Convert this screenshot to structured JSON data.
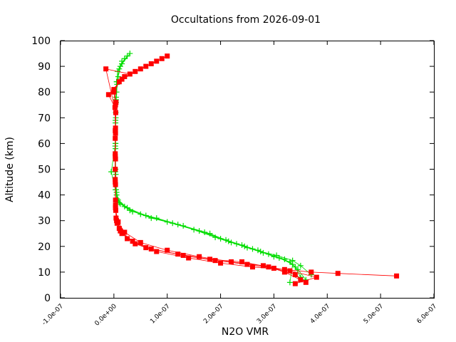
{
  "chart_data": {
    "type": "scatter",
    "title": "Occultations from 2026-09-01",
    "xlabel": "N2O VMR",
    "ylabel": "Altitude (km)",
    "xlim": [
      -1e-07,
      6e-07
    ],
    "ylim": [
      0,
      100
    ],
    "x_ticks": [
      -1e-07,
      0.0,
      1e-07,
      2e-07,
      3e-07,
      4e-07,
      5e-07,
      6e-07
    ],
    "x_tick_labels": [
      "-1.0e-07",
      "0.0e+00",
      "1.0e-07",
      "2.0e-07",
      "3.0e-07",
      "4.0e-07",
      "5.0e-07",
      "6.0e-07"
    ],
    "y_ticks": [
      0,
      10,
      20,
      30,
      40,
      50,
      60,
      70,
      80,
      90,
      100
    ],
    "y_tick_labels": [
      "0",
      "10",
      "20",
      "30",
      "40",
      "50",
      "60",
      "70",
      "80",
      "90",
      "100"
    ],
    "grid": false,
    "legend": "none",
    "series": [
      {
        "marker": "plus",
        "color": "#00dd00",
        "profiles": [
          {
            "x": [
              3.5e-07,
              3.4e-07,
              3.2e-07,
              2.9e-07,
              2.6e-07,
              2.3e-07,
              2e-07,
              1.6e-07,
              1.1e-07,
              6e-08,
              2.5e-08,
              8e-09,
              4e-09,
              3e-09,
              3e-09,
              3.5e-09,
              4e-09,
              5e-09,
              7e-09,
              1.5e-08,
              2.5e-08
            ],
            "y": [
              8,
              12,
              15,
              17,
              19,
              21,
              23,
              26,
              29,
              32,
              35,
              38,
              42,
              50,
              60,
              70,
              78,
              84,
              88,
              91,
              94
            ]
          },
          {
            "x": [
              3.6e-07,
              3.45e-07,
              3.3e-07,
              3e-07,
              2.7e-07,
              2.4e-07,
              2.1e-07,
              1.7e-07,
              1.2e-07,
              7e-08,
              3e-08,
              1e-08,
              5e-09,
              3.5e-09,
              3e-09,
              3e-09,
              4e-09,
              6e-09,
              1e-08,
              2e-08
            ],
            "y": [
              7,
              11,
              14,
              16,
              18.5,
              20.5,
              22.5,
              25.5,
              28.5,
              31,
              34,
              37,
              41,
              48,
              58,
              68,
              76,
              83,
              89,
              93
            ]
          },
          {
            "x": [
              3.3e-07,
              3.35e-07,
              3.1e-07,
              2.8e-07,
              2.5e-07,
              2.2e-07,
              1.9e-07,
              1.5e-07,
              1e-07,
              5e-08,
              2e-08,
              6e-09,
              3e-09,
              2.5e-09,
              2.5e-09,
              3e-09,
              4e-09,
              6e-09,
              1.2e-08,
              3e-08
            ],
            "y": [
              6,
              13,
              15.5,
              17.5,
              19.5,
              21.5,
              23.5,
              26.5,
              29.5,
              32.5,
              35.5,
              38.5,
              42,
              49,
              59,
              69,
              77,
              84,
              90,
              95
            ]
          },
          {
            "x": [
              3.7e-07,
              3.5e-07,
              3.35e-07,
              3.05e-07,
              2.75e-07,
              2.45e-07,
              2.15e-07,
              1.8e-07,
              1.3e-07,
              8e-08,
              3.5e-08,
              1.2e-08,
              5e-09,
              -5e-09,
              3e-09,
              3.5e-09,
              5e-09,
              8e-09,
              1.5e-08
            ],
            "y": [
              9,
              12.5,
              14.5,
              16.5,
              18,
              20,
              22,
              25,
              28,
              31,
              33.5,
              36.5,
              40,
              49,
              60,
              72,
              80,
              86,
              92
            ]
          }
        ]
      },
      {
        "marker": "square",
        "color": "#ff0000",
        "profiles": [
          {
            "x": [
              5.3e-07,
              4.2e-07,
              3.7e-07,
              3.2e-07,
              2.6e-07,
              2e-07,
              1.4e-07,
              8e-08,
              4e-08,
              1.5e-08,
              6e-09,
              3e-09,
              2.5e-09,
              2.5e-09,
              2.5e-09,
              3e-09,
              0.0,
              1e-08,
              4e-08,
              9e-08
            ],
            "y": [
              8.5,
              9.5,
              10,
              11,
              12,
              13.5,
              15.5,
              18,
              21,
              25,
              29,
              35,
              45,
              55,
              65,
              75,
              80,
              84,
              88,
              93
            ]
          },
          {
            "x": [
              3.6e-07,
              3.4e-07,
              3e-07,
              2.5e-07,
              1.9e-07,
              1.3e-07,
              7e-08,
              3.5e-08,
              1.2e-08,
              5e-09,
              3e-09,
              2.5e-09,
              2.5e-09,
              3e-09,
              4e-09,
              0.0,
              2e-08,
              6e-08,
              1e-07
            ],
            "y": [
              6,
              9,
              11.5,
              13,
              14.5,
              16.5,
              19,
              22,
              26,
              30,
              36,
              46,
              56,
              66,
              76,
              81,
              86,
              90,
              94
            ]
          },
          {
            "x": [
              3.4e-07,
              3.8e-07,
              3.3e-07,
              2.8e-07,
              2.2e-07,
              1.6e-07,
              1e-07,
              5e-08,
              2e-08,
              8e-09,
              3.5e-09,
              3e-09,
              3e-09,
              3e-09,
              2e-09,
              -1e-08,
              1.5e-08,
              5e-08,
              8e-08
            ],
            "y": [
              5.5,
              8,
              10.5,
              12.5,
              14,
              16,
              18.5,
              21.5,
              25.5,
              29.5,
              34,
              44,
              54,
              64,
              74,
              79,
              85,
              89,
              92
            ]
          },
          {
            "x": [
              3.5e-07,
              3.2e-07,
              2.9e-07,
              2.4e-07,
              1.8e-07,
              1.2e-07,
              6e-08,
              2.5e-08,
              1e-08,
              4e-09,
              3e-09,
              2.5e-09,
              2.5e-09,
              3.5e-09,
              -1.5e-08,
              3e-08,
              7e-08
            ],
            "y": [
              7,
              10,
              12,
              14,
              15,
              17,
              19.5,
              23,
              27,
              31,
              38,
              50,
              62,
              72,
              89,
              87,
              91
            ]
          }
        ]
      }
    ]
  }
}
